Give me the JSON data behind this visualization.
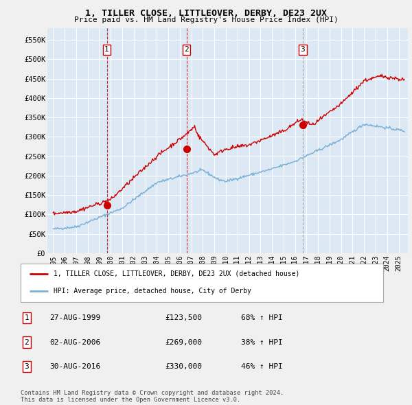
{
  "title": "1, TILLER CLOSE, LITTLEOVER, DERBY, DE23 2UX",
  "subtitle": "Price paid vs. HM Land Registry's House Price Index (HPI)",
  "ylim": [
    0,
    580000
  ],
  "yticks": [
    0,
    50000,
    100000,
    150000,
    200000,
    250000,
    300000,
    350000,
    400000,
    450000,
    500000,
    550000
  ],
  "ytick_labels": [
    "£0",
    "£50K",
    "£100K",
    "£150K",
    "£200K",
    "£250K",
    "£300K",
    "£350K",
    "£400K",
    "£450K",
    "£500K",
    "£550K"
  ],
  "background_color": "#f0f0f0",
  "plot_background": "#dce9f5",
  "grid_color": "#ffffff",
  "red_line_color": "#cc0000",
  "blue_line_color": "#7ab0d4",
  "trans_years": [
    1999.66,
    2006.58,
    2016.66
  ],
  "trans_prices": [
    123500,
    269000,
    330000
  ],
  "trans_colors": [
    "#cc0000",
    "#cc0000",
    "#888888"
  ],
  "trans_linestyles": [
    "dashed",
    "dashed",
    "dashed"
  ],
  "legend_red_label": "1, TILLER CLOSE, LITTLEOVER, DERBY, DE23 2UX (detached house)",
  "legend_blue_label": "HPI: Average price, detached house, City of Derby",
  "table_rows": [
    [
      "1",
      "27-AUG-1999",
      "£123,500",
      "68% ↑ HPI"
    ],
    [
      "2",
      "02-AUG-2006",
      "£269,000",
      "38% ↑ HPI"
    ],
    [
      "3",
      "30-AUG-2016",
      "£330,000",
      "46% ↑ HPI"
    ]
  ],
  "footnote": "Contains HM Land Registry data © Crown copyright and database right 2024.\nThis data is licensed under the Open Government Licence v3.0.",
  "xlim_start": 1994.5,
  "xlim_end": 2025.8,
  "xticks": [
    1995,
    1996,
    1997,
    1998,
    1999,
    2000,
    2001,
    2002,
    2003,
    2004,
    2005,
    2006,
    2007,
    2008,
    2009,
    2010,
    2011,
    2012,
    2013,
    2014,
    2015,
    2016,
    2017,
    2018,
    2019,
    2020,
    2021,
    2022,
    2023,
    2024,
    2025
  ]
}
